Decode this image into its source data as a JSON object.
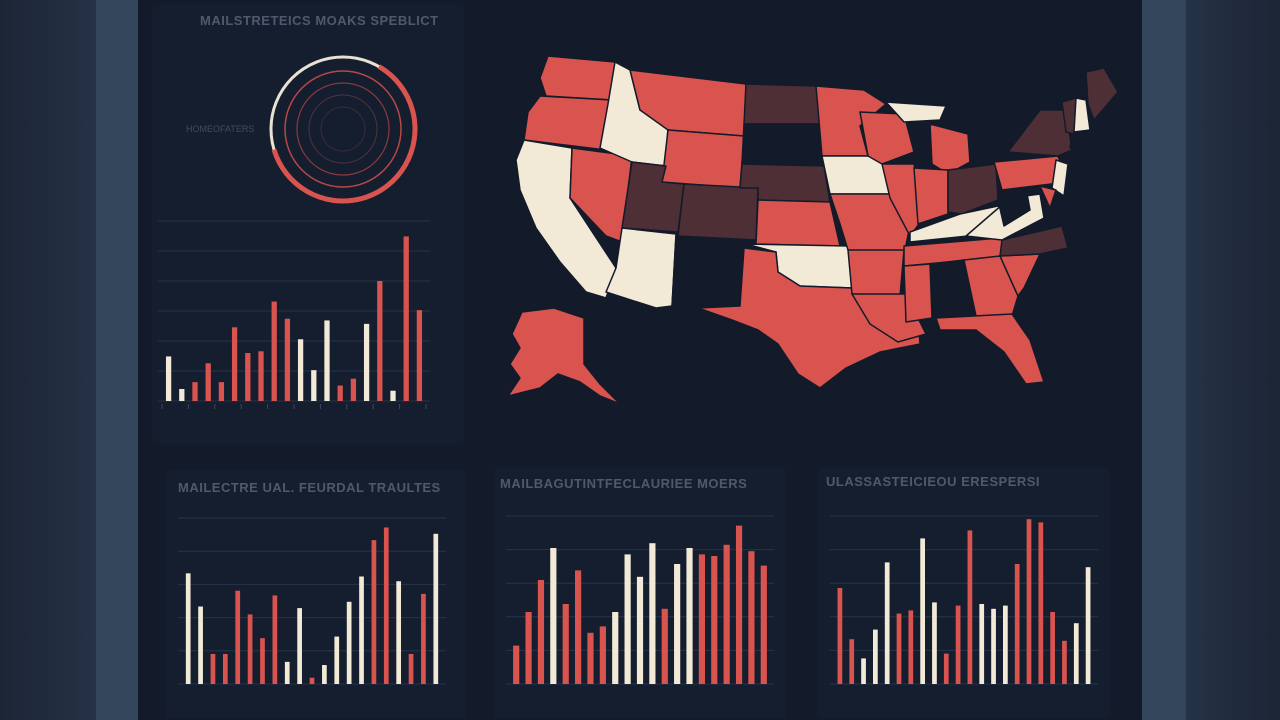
{
  "colors": {
    "red": "#d9544f",
    "cream": "#f2ead6",
    "maroon": "#4e2f36",
    "grid": "#27334a",
    "bg": "#131b2b"
  },
  "panels": {
    "top_left": {
      "title": "MAILSTRETEICS MOAKS SPEBLICT",
      "gauge_label": "HOMEOFATERS"
    },
    "map": {
      "title": ""
    },
    "bottom_left": {
      "title": "MAILECTRE UAL. FEURDAL TRAULTES"
    },
    "bottom_mid": {
      "title": "MAILBAGUTINTFECLAURIEE MOERS"
    },
    "bottom_right": {
      "title": "ULASSASTEICIEOU ERESPERSI"
    }
  },
  "chart_data": [
    {
      "type": "bar",
      "title": "MAILSTRETEICS MOAKS SPEBLICT",
      "xlabel": "",
      "ylabel": "",
      "ylim": [
        0,
        100
      ],
      "grid": true,
      "values": [
        26,
        7,
        11,
        22,
        11,
        43,
        28,
        29,
        58,
        48,
        36,
        18,
        47,
        9,
        13,
        45,
        70,
        6,
        96,
        53
      ],
      "colors": [
        "cream",
        "cream",
        "red",
        "red",
        "red",
        "red",
        "red",
        "red",
        "red",
        "red",
        "cream",
        "cream",
        "cream",
        "red",
        "red",
        "cream",
        "red",
        "cream",
        "red",
        "red"
      ]
    },
    {
      "type": "gauge",
      "label": "HOMEOFATERS",
      "value": 0.62
    },
    {
      "type": "bar",
      "title": "MAILECTRE UAL. FEURDAL TRAULTES",
      "xlabel": "",
      "ylabel": "",
      "ylim": [
        0,
        100
      ],
      "grid": true,
      "values": [
        70,
        49,
        19,
        19,
        59,
        44,
        29,
        56,
        14,
        48,
        4,
        12,
        30,
        52,
        68,
        91,
        99,
        65,
        19,
        57,
        95
      ],
      "colors": [
        "cream",
        "cream",
        "red",
        "red",
        "red",
        "red",
        "red",
        "red",
        "cream",
        "cream",
        "red",
        "cream",
        "cream",
        "cream",
        "cream",
        "red",
        "red",
        "cream",
        "red",
        "red",
        "cream"
      ]
    },
    {
      "type": "bar",
      "title": "MAILBAGUTINTFECLAURIEE MOERS",
      "xlabel": "",
      "ylabel": "",
      "ylim": [
        0,
        100
      ],
      "grid": true,
      "values": [
        24,
        45,
        65,
        85,
        50,
        71,
        32,
        36,
        45,
        81,
        67,
        88,
        47,
        75,
        85,
        81,
        80,
        87,
        99,
        83,
        74
      ],
      "colors": [
        "red",
        "red",
        "red",
        "cream",
        "red",
        "red",
        "red",
        "red",
        "cream",
        "cream",
        "cream",
        "cream",
        "red",
        "cream",
        "cream",
        "red",
        "red",
        "red",
        "red",
        "red",
        "red"
      ]
    },
    {
      "type": "bar",
      "title": "ULASSASTEICIEOU ERESPERSI",
      "xlabel": "",
      "ylabel": "",
      "ylim": [
        0,
        100
      ],
      "grid": true,
      "values": [
        60,
        28,
        16,
        34,
        76,
        44,
        46,
        91,
        51,
        19,
        49,
        96,
        50,
        47,
        49,
        75,
        103,
        101,
        45,
        27,
        38,
        73
      ],
      "colors": [
        "red",
        "red",
        "cream",
        "cream",
        "cream",
        "red",
        "red",
        "cream",
        "cream",
        "red",
        "red",
        "red",
        "cream",
        "cream",
        "cream",
        "red",
        "red",
        "red",
        "red",
        "red",
        "cream",
        "cream"
      ]
    }
  ]
}
